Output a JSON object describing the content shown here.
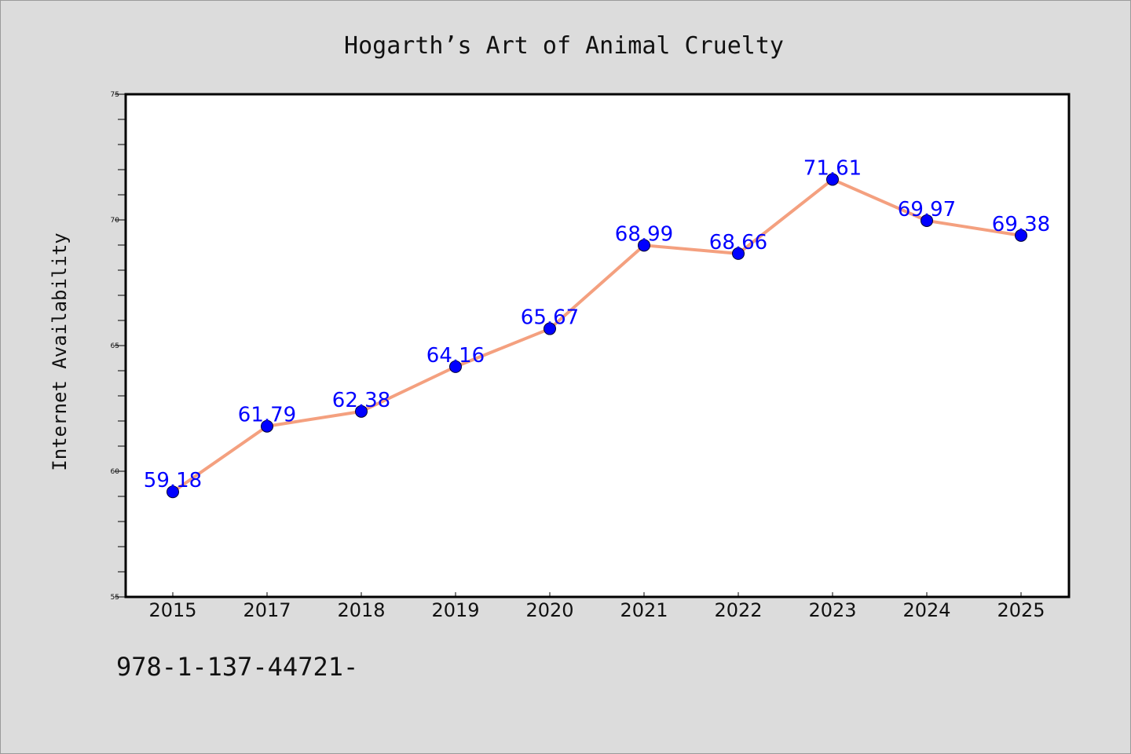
{
  "chart_data": {
    "type": "line",
    "title": "Hogarth’s Art of Animal Cruelty",
    "xlabel": "",
    "ylabel": "Internet Availability",
    "categories": [
      "2015",
      "2017",
      "2018",
      "2019",
      "2020",
      "2021",
      "2022",
      "2023",
      "2024",
      "2025"
    ],
    "series": [
      {
        "values": [
          59.18,
          61.79,
          62.38,
          64.16,
          65.67,
          68.99,
          68.66,
          71.61,
          69.97,
          69.38
        ],
        "data_labels": [
          "59.18",
          "61.79",
          "62.38",
          "64.16",
          "65.67",
          "68.99",
          "68.66",
          "71.61",
          "69.97",
          "69.38"
        ],
        "line_color": "#f4a07f",
        "marker_color": "#0000ff"
      }
    ],
    "ylim": [
      55,
      75
    ],
    "yticks": [
      55,
      60,
      65,
      70,
      75
    ],
    "ytick_labels": [
      "55",
      "60",
      "65",
      "70",
      "75"
    ],
    "grid": false,
    "legend": "none",
    "label_color": "#0000ff",
    "background_color": "#dcdcdc",
    "plot_background_color": "#ffffff"
  },
  "footer": {
    "isbn": "978-1-137-44721-"
  }
}
